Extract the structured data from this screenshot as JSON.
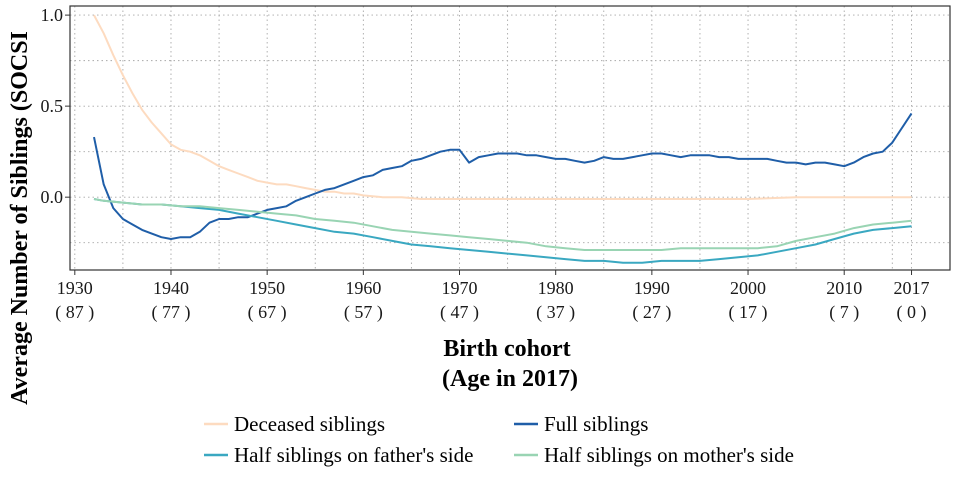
{
  "chart_data": {
    "type": "line",
    "title": "",
    "xlabel": "Birth cohort",
    "xlabel_line2": "(Age in 2017)",
    "ylabel": "Average Number of Siblings (SOCSI",
    "xlim": [
      1929.5,
      2021
    ],
    "ylim": [
      -0.4,
      1.05
    ],
    "x_ticks": [
      {
        "value": 1930,
        "label": "1930",
        "sublabel": "( 87 )"
      },
      {
        "value": 1940,
        "label": "1940",
        "sublabel": "( 77 )"
      },
      {
        "value": 1950,
        "label": "1950",
        "sublabel": "( 67 )"
      },
      {
        "value": 1960,
        "label": "1960",
        "sublabel": "( 57 )"
      },
      {
        "value": 1970,
        "label": "1970",
        "sublabel": "( 47 )"
      },
      {
        "value": 1980,
        "label": "1980",
        "sublabel": "( 37 )"
      },
      {
        "value": 1990,
        "label": "1990",
        "sublabel": "( 27 )"
      },
      {
        "value": 2000,
        "label": "2000",
        "sublabel": "( 17 )"
      },
      {
        "value": 2010,
        "label": "2010",
        "sublabel": "( 7 )"
      },
      {
        "value": 2017,
        "label": "2017",
        "sublabel": "( 0 )"
      }
    ],
    "y_ticks": [
      {
        "value": 1.0,
        "label": "1.0"
      },
      {
        "value": 0.5,
        "label": "0.5"
      },
      {
        "value": 0.0,
        "label": "0.0"
      }
    ],
    "grid": true,
    "legend_position": "bottom",
    "series": [
      {
        "name": "Deceased siblings",
        "color": "#fddbc0",
        "x": [
          1932,
          1933,
          1934,
          1935,
          1936,
          1937,
          1938,
          1939,
          1940,
          1941,
          1942,
          1943,
          1944,
          1945,
          1946,
          1947,
          1948,
          1949,
          1950,
          1951,
          1952,
          1953,
          1954,
          1955,
          1956,
          1957,
          1958,
          1959,
          1960,
          1962,
          1964,
          1966,
          1968,
          1970,
          1975,
          1980,
          1985,
          1990,
          1995,
          2000,
          2005,
          2010,
          2015,
          2017
        ],
        "y": [
          1.0,
          0.9,
          0.78,
          0.67,
          0.57,
          0.48,
          0.41,
          0.35,
          0.29,
          0.26,
          0.25,
          0.23,
          0.2,
          0.17,
          0.15,
          0.13,
          0.11,
          0.09,
          0.08,
          0.07,
          0.07,
          0.06,
          0.05,
          0.04,
          0.03,
          0.03,
          0.02,
          0.02,
          0.01,
          0.0,
          0.0,
          -0.01,
          -0.01,
          -0.01,
          -0.01,
          -0.01,
          -0.01,
          -0.01,
          -0.01,
          -0.01,
          0.0,
          0.0,
          0.0,
          0.0
        ]
      },
      {
        "name": "Full siblings",
        "color": "#1f5ea8",
        "x": [
          1932,
          1933,
          1934,
          1935,
          1936,
          1937,
          1938,
          1939,
          1940,
          1941,
          1942,
          1943,
          1944,
          1945,
          1946,
          1947,
          1948,
          1949,
          1950,
          1951,
          1952,
          1953,
          1954,
          1955,
          1956,
          1957,
          1958,
          1959,
          1960,
          1961,
          1962,
          1963,
          1964,
          1965,
          1966,
          1967,
          1968,
          1969,
          1970,
          1971,
          1972,
          1973,
          1974,
          1975,
          1976,
          1977,
          1978,
          1979,
          1980,
          1981,
          1982,
          1983,
          1984,
          1985,
          1986,
          1987,
          1988,
          1989,
          1990,
          1991,
          1992,
          1993,
          1994,
          1995,
          1996,
          1997,
          1998,
          1999,
          2000,
          2001,
          2002,
          2003,
          2004,
          2005,
          2006,
          2007,
          2008,
          2009,
          2010,
          2011,
          2012,
          2013,
          2014,
          2015,
          2016,
          2017
        ],
        "y": [
          0.33,
          0.07,
          -0.06,
          -0.12,
          -0.15,
          -0.18,
          -0.2,
          -0.22,
          -0.23,
          -0.22,
          -0.22,
          -0.19,
          -0.14,
          -0.12,
          -0.12,
          -0.11,
          -0.11,
          -0.09,
          -0.07,
          -0.06,
          -0.05,
          -0.02,
          0.0,
          0.02,
          0.04,
          0.05,
          0.07,
          0.09,
          0.11,
          0.12,
          0.15,
          0.16,
          0.17,
          0.2,
          0.21,
          0.23,
          0.25,
          0.26,
          0.26,
          0.19,
          0.22,
          0.23,
          0.24,
          0.24,
          0.24,
          0.23,
          0.23,
          0.22,
          0.21,
          0.21,
          0.2,
          0.19,
          0.2,
          0.22,
          0.21,
          0.21,
          0.22,
          0.23,
          0.24,
          0.24,
          0.23,
          0.22,
          0.23,
          0.23,
          0.23,
          0.22,
          0.22,
          0.21,
          0.21,
          0.21,
          0.21,
          0.2,
          0.19,
          0.19,
          0.18,
          0.19,
          0.19,
          0.18,
          0.17,
          0.19,
          0.22,
          0.24,
          0.25,
          0.3,
          0.38,
          0.46
        ]
      },
      {
        "name": "Half siblings on father's side",
        "color": "#3aa8c1",
        "x": [
          1932,
          1933,
          1935,
          1937,
          1939,
          1941,
          1943,
          1945,
          1947,
          1949,
          1951,
          1953,
          1955,
          1957,
          1959,
          1961,
          1963,
          1965,
          1967,
          1969,
          1971,
          1973,
          1975,
          1977,
          1979,
          1981,
          1983,
          1985,
          1987,
          1989,
          1991,
          1993,
          1995,
          1997,
          1999,
          2001,
          2003,
          2005,
          2007,
          2009,
          2011,
          2013,
          2015,
          2017
        ],
        "y": [
          -0.01,
          -0.02,
          -0.03,
          -0.04,
          -0.04,
          -0.05,
          -0.06,
          -0.07,
          -0.09,
          -0.11,
          -0.13,
          -0.15,
          -0.17,
          -0.19,
          -0.2,
          -0.22,
          -0.24,
          -0.26,
          -0.27,
          -0.28,
          -0.29,
          -0.3,
          -0.31,
          -0.32,
          -0.33,
          -0.34,
          -0.35,
          -0.35,
          -0.36,
          -0.36,
          -0.35,
          -0.35,
          -0.35,
          -0.34,
          -0.33,
          -0.32,
          -0.3,
          -0.28,
          -0.26,
          -0.23,
          -0.2,
          -0.18,
          -0.17,
          -0.16
        ]
      },
      {
        "name": "Half siblings on mother's side",
        "color": "#99d4b3",
        "x": [
          1932,
          1933,
          1935,
          1937,
          1939,
          1941,
          1943,
          1945,
          1947,
          1949,
          1951,
          1953,
          1955,
          1957,
          1959,
          1961,
          1963,
          1965,
          1967,
          1969,
          1971,
          1973,
          1975,
          1977,
          1979,
          1981,
          1983,
          1985,
          1987,
          1989,
          1991,
          1993,
          1995,
          1997,
          1999,
          2001,
          2003,
          2005,
          2007,
          2009,
          2011,
          2013,
          2015,
          2017
        ],
        "y": [
          -0.01,
          -0.02,
          -0.03,
          -0.04,
          -0.04,
          -0.05,
          -0.05,
          -0.06,
          -0.07,
          -0.08,
          -0.09,
          -0.1,
          -0.12,
          -0.13,
          -0.14,
          -0.16,
          -0.18,
          -0.19,
          -0.2,
          -0.21,
          -0.22,
          -0.23,
          -0.24,
          -0.25,
          -0.27,
          -0.28,
          -0.29,
          -0.29,
          -0.29,
          -0.29,
          -0.29,
          -0.28,
          -0.28,
          -0.28,
          -0.28,
          -0.28,
          -0.27,
          -0.24,
          -0.22,
          -0.2,
          -0.17,
          -0.15,
          -0.14,
          -0.13
        ]
      }
    ]
  }
}
